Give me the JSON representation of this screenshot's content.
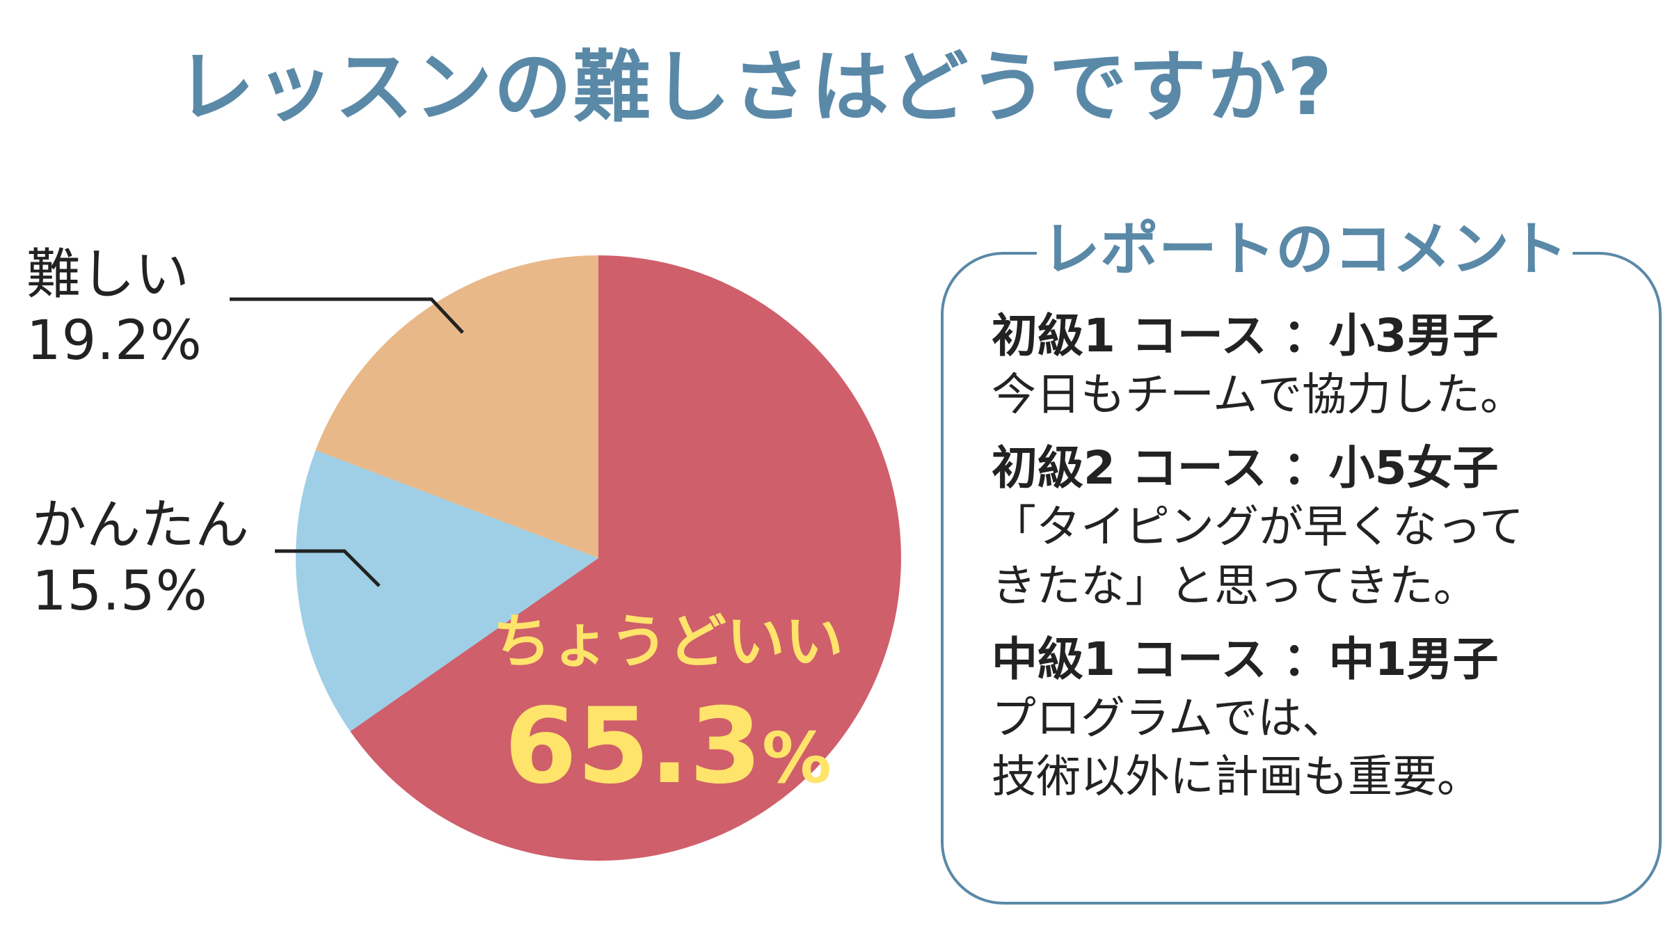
{
  "title": "レッスンの難しさはどうですか?",
  "colors": {
    "title": "#5a89a8",
    "box_border": "#5a89a8",
    "inner_label": "#ffe46b",
    "leader_line": "#222222"
  },
  "chart_data": {
    "type": "pie",
    "title": "レッスンの難しさはどうですか?",
    "start": "12 o'clock",
    "direction": "clockwise",
    "slices": [
      {
        "label": "ちょうどいい",
        "value": 65.3,
        "display": "65.3",
        "unit": "%",
        "color": "#cf5f6b"
      },
      {
        "label": "かんたん",
        "value": 15.5,
        "display": "15.5%",
        "color": "#9ecfe6"
      },
      {
        "label": "難しい",
        "value": 19.2,
        "display": "19.2%",
        "color": "#e9b888"
      }
    ]
  },
  "comment_box": {
    "title": "レポートのコメント",
    "items": [
      {
        "head": "初級1 コース ：小3男子",
        "text": "今日もチームで協力した。"
      },
      {
        "head": "初級2 コース ：小5女子",
        "text": "「タイピングが早くなって\nきたな」と思ってきた。"
      },
      {
        "head": "中級1 コース ：中1男子",
        "text": "プログラムでは、\n技術以外に計画も重要。"
      }
    ]
  }
}
